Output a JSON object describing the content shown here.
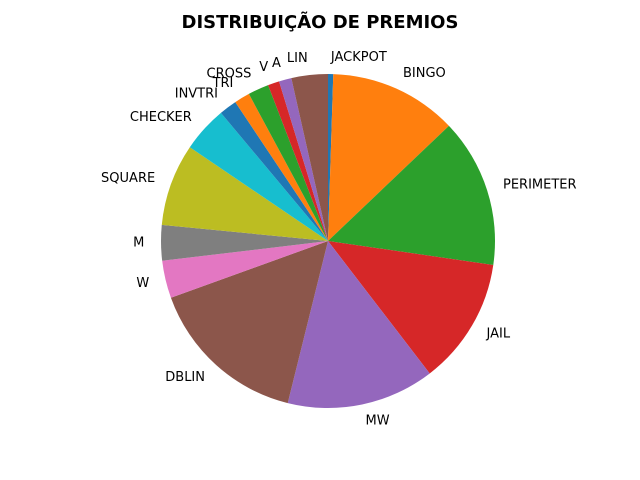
{
  "chart_data": {
    "type": "pie",
    "title": "DISTRIBUIÇÃO DE PREMIOS",
    "start_angle_deg": 90,
    "direction": "clockwise",
    "slices": [
      {
        "label": "JACKPOT",
        "value": 0.5,
        "color": "#1f77b4"
      },
      {
        "label": "BINGO",
        "value": 12.3,
        "color": "#ff7f0e"
      },
      {
        "label": "PERIMETER",
        "value": 14.3,
        "color": "#2ca02c"
      },
      {
        "label": "JAIL",
        "value": 12.2,
        "color": "#d62728"
      },
      {
        "label": "MW",
        "value": 14.2,
        "color": "#9467bd"
      },
      {
        "label": "DBLIN",
        "value": 15.5,
        "color": "#8c564b"
      },
      {
        "label": "W",
        "value": 3.6,
        "color": "#e377c2"
      },
      {
        "label": "M",
        "value": 3.4,
        "color": "#7f7f7f"
      },
      {
        "label": "SQUARE",
        "value": 7.9,
        "color": "#bcbd22"
      },
      {
        "label": "CHECKER",
        "value": 4.4,
        "color": "#17becf"
      },
      {
        "label": "INVTRI",
        "value": 1.7,
        "color": "#1f77b4"
      },
      {
        "label": "TRI",
        "value": 1.5,
        "color": "#ff7f0e"
      },
      {
        "label": "CROSS",
        "value": 2.0,
        "color": "#2ca02c"
      },
      {
        "label": "V",
        "value": 1.1,
        "color": "#d62728"
      },
      {
        "label": "A",
        "value": 1.2,
        "color": "#9467bd"
      },
      {
        "label": "LIN",
        "value": 3.5,
        "color": "#8c564b"
      }
    ]
  }
}
